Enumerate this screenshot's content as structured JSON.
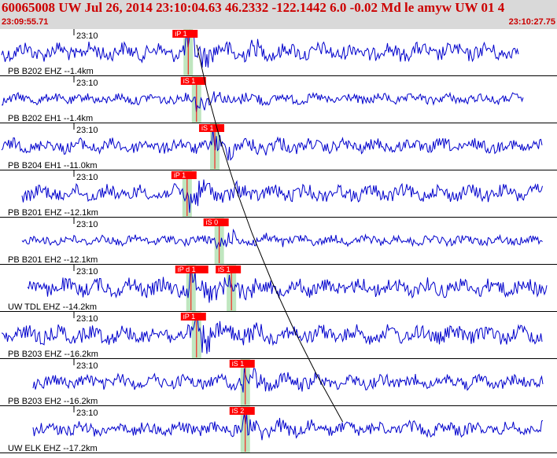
{
  "header": {
    "title": "60065008 UW Jul 26, 2014 23:10:04.63    46.2332 -122.1442   6.0 -0.02 Md le amyw UW 01    4",
    "start_time": "23:09:55.71",
    "end_time": "23:10:27.75"
  },
  "colors": {
    "header_bg": "#d9d9d9",
    "header_text": "#cc0000",
    "trace": "#0000cc",
    "pick_box": "#ff0000",
    "pick_text": "#ffffff",
    "window": "#bfe6bf"
  },
  "time_tick_label": "23:10",
  "traces": [
    {
      "label": "PB B202 EHZ --1.4km",
      "picks": [
        {
          "label": "iP 1",
          "t": 0.337
        }
      ],
      "amp": 1.0
    },
    {
      "label": "PB B202 EH1 --1.4km",
      "picks": [
        {
          "label": "iS 1",
          "t": 0.352
        }
      ],
      "amp": 0.6
    },
    {
      "label": "PB B204 EH1 --11.0km",
      "picks": [
        {
          "label": "iS 1",
          "t": 0.385
        }
      ],
      "amp": 0.8
    },
    {
      "label": "PB B201 EHZ --12.1km",
      "picks": [
        {
          "label": "iP 1",
          "t": 0.335
        }
      ],
      "amp": 0.9
    },
    {
      "label": "PB B201 EH2 --12.1km",
      "picks": [
        {
          "label": "iS 0",
          "t": 0.393
        }
      ],
      "amp": 0.3
    },
    {
      "label": "UW TDL EHZ --14.2km",
      "picks": [
        {
          "label": "iP d 1",
          "t": 0.342
        },
        {
          "label": "iS 1",
          "t": 0.415
        }
      ],
      "amp": 1.0
    },
    {
      "label": "PB B203 EHZ --16.2km",
      "picks": [
        {
          "label": "iP 1",
          "t": 0.352
        }
      ],
      "amp": 1.0
    },
    {
      "label": "PB B203 EH2 --16.2km",
      "picks": [
        {
          "label": "iS 1",
          "t": 0.44
        }
      ],
      "amp": 0.8
    },
    {
      "label": "UW ELK EHZ --17.2km",
      "picks": [
        {
          "label": "iS 2",
          "t": 0.44
        }
      ],
      "amp": 0.8
    }
  ]
}
